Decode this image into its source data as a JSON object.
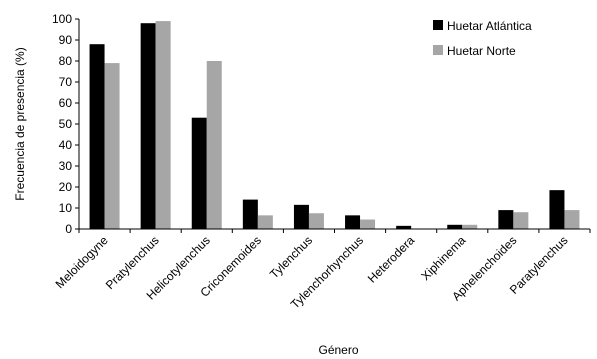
{
  "chart_data": {
    "type": "bar",
    "categories": [
      "Meloidogyne",
      "Pratylenchus",
      "Helicotylenchus",
      "Criconemoides",
      "Tylenchus",
      "Tylenchorhynchus",
      "Heterodera",
      "Xiphinema",
      "Aphelenchoides",
      "Paratylenchus"
    ],
    "series": [
      {
        "name": "Huetar Atlántica",
        "color": "#000000",
        "values": [
          88,
          98,
          53,
          14,
          11.5,
          6.5,
          1.5,
          2,
          9,
          18.5
        ]
      },
      {
        "name": "Huetar Norte",
        "color": "#a6a6a6",
        "values": [
          79,
          99,
          80,
          6.5,
          7.5,
          4.5,
          0,
          2,
          8,
          9
        ]
      }
    ],
    "xlabel": "Género",
    "ylabel": "Frecuencia de presencia (%)",
    "ylim": [
      0,
      100
    ],
    "yticks": [
      0,
      10,
      20,
      30,
      40,
      50,
      60,
      70,
      80,
      90,
      100
    ],
    "grid": false,
    "legend_position": "top-right"
  }
}
